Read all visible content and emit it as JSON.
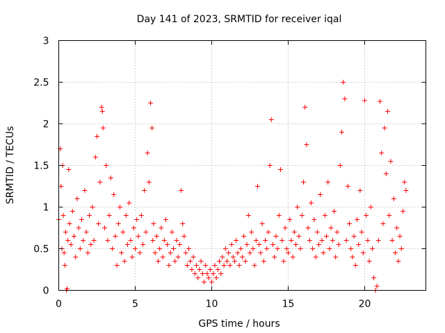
{
  "chart_data": {
    "type": "scatter",
    "title": "Day 141 of 2023, SRMTID for receiver iqal",
    "xlabel": "GPS time / hours",
    "ylabel": "SRMTID / TECUs",
    "xlim": [
      0,
      24
    ],
    "ylim": [
      0,
      3
    ],
    "xticks": [
      0,
      5,
      10,
      15,
      20
    ],
    "xtick_labels": [
      "0",
      "5",
      "10",
      "15",
      "20"
    ],
    "yticks": [
      0,
      0.5,
      1,
      1.5,
      2,
      2.5,
      3
    ],
    "ytick_labels": [
      "0",
      "0.5",
      "1",
      "1.5",
      "2",
      "2.5",
      "3"
    ],
    "grid": true,
    "marker": "+",
    "color": "#ff0000",
    "series": [
      {
        "name": "SRMTID",
        "x": [
          0.0,
          0.1,
          0.15,
          0.2,
          0.25,
          0.3,
          0.35,
          0.4,
          0.45,
          0.5,
          0.55,
          0.6,
          0.65,
          0.7,
          0.8,
          0.9,
          1.0,
          1.1,
          1.2,
          1.3,
          1.4,
          1.5,
          1.6,
          1.7,
          1.8,
          1.9,
          2.0,
          2.1,
          2.2,
          2.3,
          2.4,
          2.5,
          2.6,
          2.7,
          2.8,
          2.85,
          2.9,
          3.0,
          3.1,
          3.2,
          3.3,
          3.4,
          3.5,
          3.6,
          3.7,
          3.8,
          3.9,
          4.0,
          4.1,
          4.2,
          4.3,
          4.4,
          4.5,
          4.6,
          4.7,
          4.8,
          4.9,
          5.0,
          5.1,
          5.2,
          5.3,
          5.4,
          5.5,
          5.6,
          5.7,
          5.8,
          5.9,
          6.0,
          6.1,
          6.15,
          6.2,
          6.3,
          6.4,
          6.5,
          6.6,
          6.7,
          6.8,
          6.9,
          7.0,
          7.1,
          7.2,
          7.3,
          7.4,
          7.5,
          7.6,
          7.7,
          7.8,
          7.9,
          8.0,
          8.1,
          8.2,
          8.3,
          8.4,
          8.5,
          8.6,
          8.7,
          8.8,
          8.9,
          9.0,
          9.1,
          9.2,
          9.3,
          9.4,
          9.5,
          9.6,
          9.7,
          9.8,
          9.9,
          10.0,
          10.1,
          10.2,
          10.3,
          10.4,
          10.5,
          10.6,
          10.7,
          10.8,
          10.9,
          11.0,
          11.1,
          11.2,
          11.3,
          11.4,
          11.5,
          11.6,
          11.7,
          11.8,
          11.9,
          12.0,
          12.1,
          12.2,
          12.3,
          12.4,
          12.5,
          12.6,
          12.7,
          12.8,
          12.9,
          13.0,
          13.1,
          13.2,
          13.3,
          13.4,
          13.5,
          13.6,
          13.7,
          13.8,
          13.9,
          14.0,
          14.1,
          14.2,
          14.3,
          14.4,
          14.5,
          14.6,
          14.7,
          14.8,
          14.9,
          15.0,
          15.1,
          15.2,
          15.3,
          15.4,
          15.5,
          15.6,
          15.7,
          15.8,
          15.9,
          16.0,
          16.1,
          16.2,
          16.3,
          16.4,
          16.5,
          16.6,
          16.7,
          16.8,
          16.9,
          17.0,
          17.1,
          17.2,
          17.3,
          17.4,
          17.5,
          17.6,
          17.7,
          17.8,
          17.9,
          18.0,
          18.1,
          18.2,
          18.3,
          18.4,
          18.5,
          18.6,
          18.7,
          18.8,
          18.9,
          19.0,
          19.1,
          19.2,
          19.3,
          19.4,
          19.5,
          19.6,
          19.7,
          19.8,
          19.9,
          20.0,
          20.1,
          20.2,
          20.3,
          20.4,
          20.5,
          20.6,
          20.7,
          20.8,
          20.9,
          21.0,
          21.1,
          21.2,
          21.3,
          21.4,
          21.5,
          21.6,
          21.7,
          21.8,
          21.9,
          22.0,
          22.1,
          22.2,
          22.3,
          22.4,
          22.5,
          22.6,
          22.7
        ],
        "y": [
          0.85,
          1.7,
          1.25,
          0.5,
          1.5,
          0.9,
          0.45,
          0.3,
          0.7,
          0.0,
          0.02,
          0.6,
          1.45,
          0.8,
          0.55,
          0.95,
          0.65,
          0.4,
          1.1,
          0.75,
          0.5,
          0.85,
          0.6,
          1.2,
          0.7,
          0.45,
          0.9,
          0.55,
          1.0,
          0.6,
          1.6,
          1.85,
          0.8,
          1.3,
          2.2,
          2.15,
          1.95,
          0.75,
          1.5,
          0.6,
          0.9,
          1.35,
          0.5,
          1.15,
          0.65,
          0.3,
          0.8,
          1.0,
          0.45,
          0.7,
          0.35,
          0.9,
          0.55,
          1.05,
          0.6,
          0.4,
          0.75,
          0.5,
          0.85,
          0.65,
          0.45,
          0.9,
          0.55,
          1.2,
          0.7,
          1.65,
          1.3,
          2.25,
          1.95,
          0.6,
          0.8,
          0.45,
          0.65,
          0.35,
          0.5,
          0.75,
          0.4,
          0.6,
          0.85,
          0.55,
          0.3,
          0.45,
          0.7,
          0.5,
          0.35,
          0.6,
          0.4,
          0.55,
          1.2,
          0.8,
          0.65,
          0.45,
          0.3,
          0.5,
          0.35,
          0.25,
          0.4,
          0.2,
          0.3,
          0.15,
          0.25,
          0.35,
          0.2,
          0.1,
          0.3,
          0.2,
          0.15,
          0.25,
          0.1,
          0.2,
          0.3,
          0.15,
          0.25,
          0.35,
          0.2,
          0.4,
          0.3,
          0.5,
          0.35,
          0.45,
          0.3,
          0.55,
          0.4,
          0.35,
          0.6,
          0.45,
          0.3,
          0.5,
          0.4,
          0.65,
          0.35,
          0.55,
          0.9,
          0.45,
          0.7,
          0.5,
          0.3,
          0.6,
          1.25,
          0.55,
          0.45,
          0.8,
          0.35,
          0.6,
          0.5,
          0.7,
          1.5,
          2.05,
          0.55,
          0.4,
          0.65,
          0.5,
          0.9,
          1.45,
          0.6,
          0.35,
          0.75,
          0.5,
          0.45,
          0.85,
          0.6,
          0.4,
          0.7,
          0.55,
          1.0,
          0.65,
          0.5,
          0.9,
          1.3,
          2.2,
          1.75,
          0.75,
          0.6,
          1.05,
          0.5,
          0.85,
          0.4,
          0.7,
          0.55,
          1.15,
          0.6,
          0.45,
          0.9,
          0.65,
          1.3,
          0.5,
          0.75,
          0.6,
          0.95,
          0.4,
          0.7,
          0.55,
          1.5,
          1.9,
          2.5,
          2.3,
          0.6,
          1.25,
          0.8,
          0.5,
          0.4,
          0.65,
          0.3,
          0.85,
          0.55,
          1.2,
          0.7,
          0.45,
          2.28,
          0.9,
          0.6,
          0.35,
          1.0,
          0.5,
          0.15,
          0.0,
          0.05,
          0.6,
          2.27,
          1.65,
          0.8,
          1.95,
          1.4,
          2.15,
          0.9,
          1.55,
          0.6,
          1.1,
          0.45,
          0.75,
          0.35,
          0.65,
          0.5,
          0.95,
          1.3,
          1.2
        ]
      }
    ]
  }
}
